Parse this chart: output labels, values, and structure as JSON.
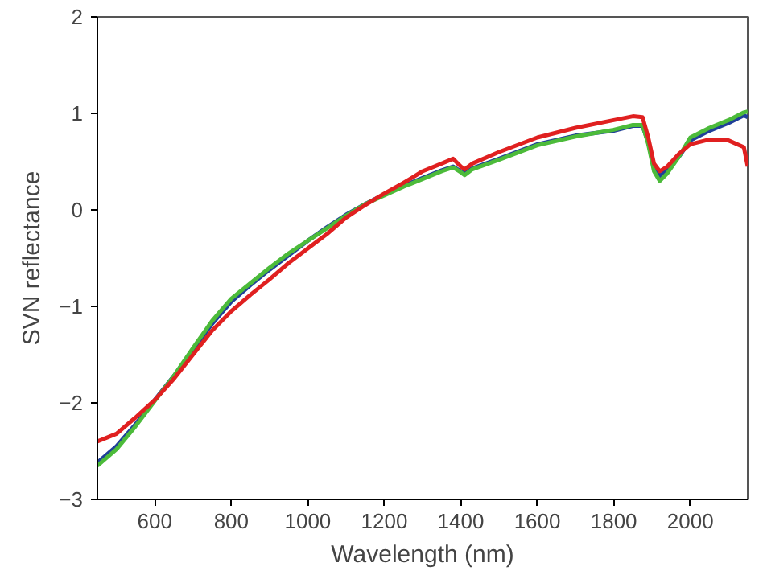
{
  "chart_data": {
    "type": "line",
    "xlabel": "Wavelength (nm)",
    "ylabel": "SVN reflectance",
    "xlim": [
      450,
      2150
    ],
    "ylim": [
      -3,
      2
    ],
    "xticks": [
      600,
      800,
      1000,
      1200,
      1400,
      1600,
      1800,
      2000
    ],
    "yticks": [
      -3,
      -2,
      -1,
      0,
      1,
      2
    ],
    "grid": false,
    "line_style": "solid",
    "marker": "none",
    "x": [
      450,
      500,
      550,
      600,
      650,
      700,
      750,
      800,
      850,
      900,
      950,
      1000,
      1050,
      1100,
      1150,
      1200,
      1250,
      1300,
      1350,
      1380,
      1400,
      1410,
      1430,
      1500,
      1600,
      1700,
      1800,
      1850,
      1875,
      1890,
      1905,
      1920,
      1940,
      1970,
      2000,
      2050,
      2100,
      2140,
      2150
    ],
    "series": [
      {
        "color": "#1f3f99",
        "values": [
          -2.62,
          -2.45,
          -2.22,
          -1.97,
          -1.72,
          -1.45,
          -1.18,
          -0.95,
          -0.78,
          -0.62,
          -0.47,
          -0.32,
          -0.18,
          -0.05,
          0.06,
          0.16,
          0.25,
          0.33,
          0.41,
          0.45,
          0.4,
          0.38,
          0.43,
          0.53,
          0.68,
          0.77,
          0.82,
          0.87,
          0.87,
          0.7,
          0.45,
          0.35,
          0.42,
          0.55,
          0.72,
          0.82,
          0.9,
          0.98,
          0.96
        ]
      },
      {
        "color": "#4cbb3a",
        "values": [
          -2.65,
          -2.48,
          -2.24,
          -1.98,
          -1.72,
          -1.43,
          -1.15,
          -0.92,
          -0.76,
          -0.6,
          -0.45,
          -0.32,
          -0.19,
          -0.06,
          0.06,
          0.15,
          0.24,
          0.32,
          0.4,
          0.44,
          0.39,
          0.36,
          0.42,
          0.52,
          0.67,
          0.76,
          0.83,
          0.88,
          0.88,
          0.68,
          0.4,
          0.3,
          0.38,
          0.55,
          0.75,
          0.85,
          0.93,
          1.01,
          1.02
        ]
      },
      {
        "color": "#e02020",
        "values": [
          -2.4,
          -2.32,
          -2.15,
          -1.97,
          -1.75,
          -1.5,
          -1.25,
          -1.05,
          -0.88,
          -0.72,
          -0.55,
          -0.4,
          -0.25,
          -0.08,
          0.05,
          0.17,
          0.28,
          0.4,
          0.48,
          0.53,
          0.45,
          0.42,
          0.48,
          0.6,
          0.75,
          0.85,
          0.93,
          0.97,
          0.96,
          0.75,
          0.48,
          0.4,
          0.45,
          0.58,
          0.68,
          0.73,
          0.72,
          0.65,
          0.45
        ]
      }
    ]
  }
}
